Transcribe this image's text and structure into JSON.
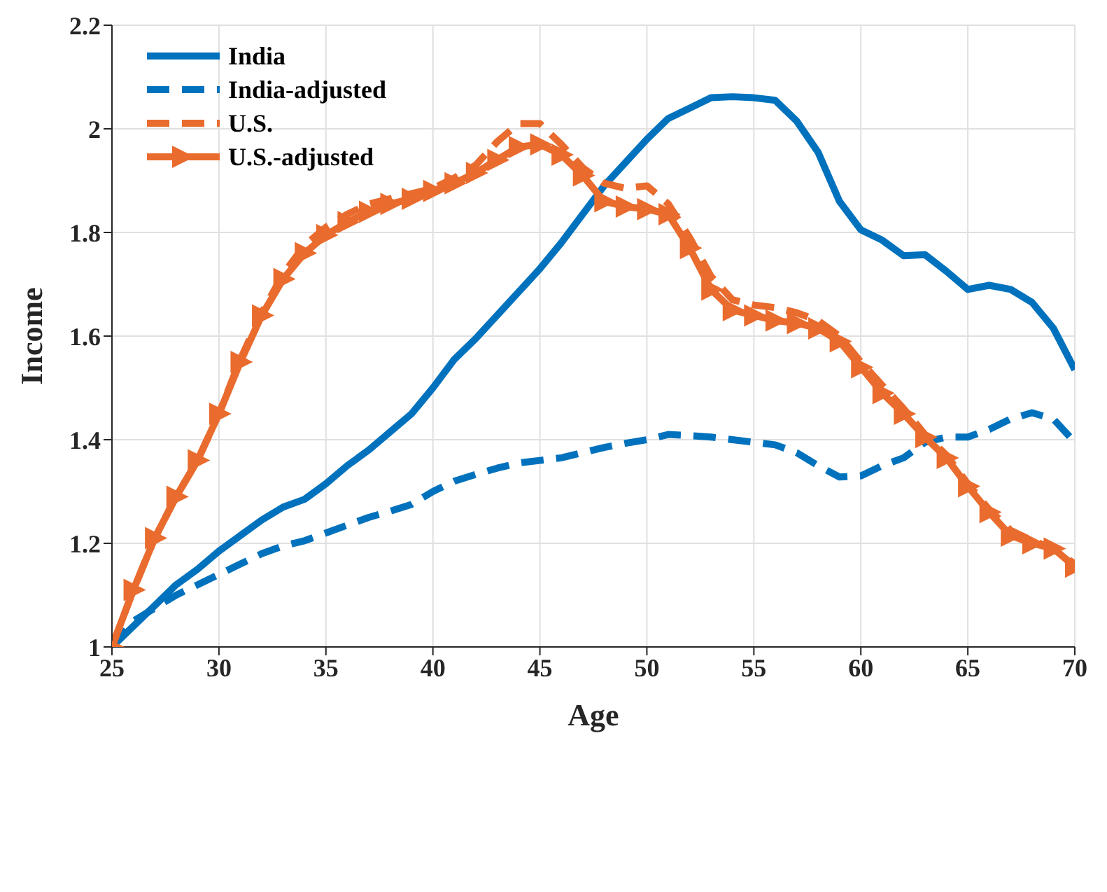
{
  "chart_data": {
    "type": "line",
    "xlabel": "Age",
    "ylabel": "Income",
    "x": [
      25,
      26,
      27,
      28,
      29,
      30,
      31,
      32,
      33,
      34,
      35,
      36,
      37,
      38,
      39,
      40,
      41,
      42,
      43,
      44,
      45,
      46,
      47,
      48,
      49,
      50,
      51,
      52,
      53,
      54,
      55,
      56,
      57,
      58,
      59,
      60,
      61,
      62,
      63,
      64,
      65,
      66,
      67,
      68,
      69,
      70
    ],
    "series": [
      {
        "name": "India",
        "color": "#0072bd",
        "line_style": "solid",
        "values": [
          1.0,
          1.04,
          1.08,
          1.12,
          1.15,
          1.185,
          1.215,
          1.245,
          1.27,
          1.285,
          1.315,
          1.35,
          1.38,
          1.415,
          1.45,
          1.5,
          1.555,
          1.595,
          1.64,
          1.685,
          1.73,
          1.78,
          1.835,
          1.89,
          1.935,
          1.98,
          2.02,
          2.04,
          2.06,
          2.062,
          2.06,
          2.055,
          2.015,
          1.955,
          1.86,
          1.805,
          1.785,
          1.755,
          1.757,
          1.725,
          1.69,
          1.698,
          1.69,
          1.665,
          1.615,
          1.535
        ]
      },
      {
        "name": "India-adjusted",
        "color": "#0072bd",
        "line_style": "dashed",
        "values": [
          1.0,
          1.05,
          1.075,
          1.1,
          1.12,
          1.14,
          1.16,
          1.18,
          1.195,
          1.205,
          1.22,
          1.235,
          1.25,
          1.262,
          1.275,
          1.3,
          1.32,
          1.333,
          1.345,
          1.355,
          1.36,
          1.365,
          1.375,
          1.385,
          1.393,
          1.4,
          1.41,
          1.408,
          1.405,
          1.4,
          1.395,
          1.39,
          1.375,
          1.35,
          1.328,
          1.33,
          1.35,
          1.365,
          1.395,
          1.405,
          1.405,
          1.42,
          1.44,
          1.452,
          1.44,
          1.395
        ]
      },
      {
        "name": "U.S.",
        "color": "#e96b2d",
        "line_style": "dashed",
        "values": [
          1.0,
          1.11,
          1.21,
          1.29,
          1.36,
          1.45,
          1.555,
          1.645,
          1.72,
          1.775,
          1.81,
          1.835,
          1.855,
          1.865,
          1.875,
          1.885,
          1.905,
          1.93,
          1.975,
          2.01,
          2.01,
          1.97,
          1.925,
          1.895,
          1.885,
          1.89,
          1.855,
          1.79,
          1.715,
          1.67,
          1.66,
          1.655,
          1.645,
          1.63,
          1.6,
          1.55,
          1.505,
          1.46,
          1.41,
          1.37,
          1.315,
          1.265,
          1.225,
          1.205,
          1.19,
          1.16
        ]
      },
      {
        "name": "U.S.-adjusted",
        "color": "#e96b2d",
        "line_style": "solid",
        "marker": "triangle",
        "values": [
          1.0,
          1.11,
          1.21,
          1.29,
          1.36,
          1.45,
          1.55,
          1.64,
          1.71,
          1.76,
          1.795,
          1.82,
          1.84,
          1.855,
          1.865,
          1.88,
          1.895,
          1.915,
          1.94,
          1.965,
          1.97,
          1.95,
          1.91,
          1.86,
          1.85,
          1.845,
          1.835,
          1.77,
          1.69,
          1.65,
          1.64,
          1.63,
          1.625,
          1.615,
          1.59,
          1.54,
          1.49,
          1.45,
          1.405,
          1.365,
          1.31,
          1.26,
          1.215,
          1.2,
          1.19,
          1.155
        ]
      }
    ],
    "xlim": [
      25,
      70
    ],
    "xticks": [
      25,
      30,
      35,
      40,
      45,
      50,
      55,
      60,
      65,
      70
    ],
    "ylim": [
      1,
      2.2
    ],
    "yticks": [
      1,
      1.2,
      1.4,
      1.6,
      1.8,
      2,
      2.2
    ],
    "grid": true,
    "legend": "top left"
  }
}
